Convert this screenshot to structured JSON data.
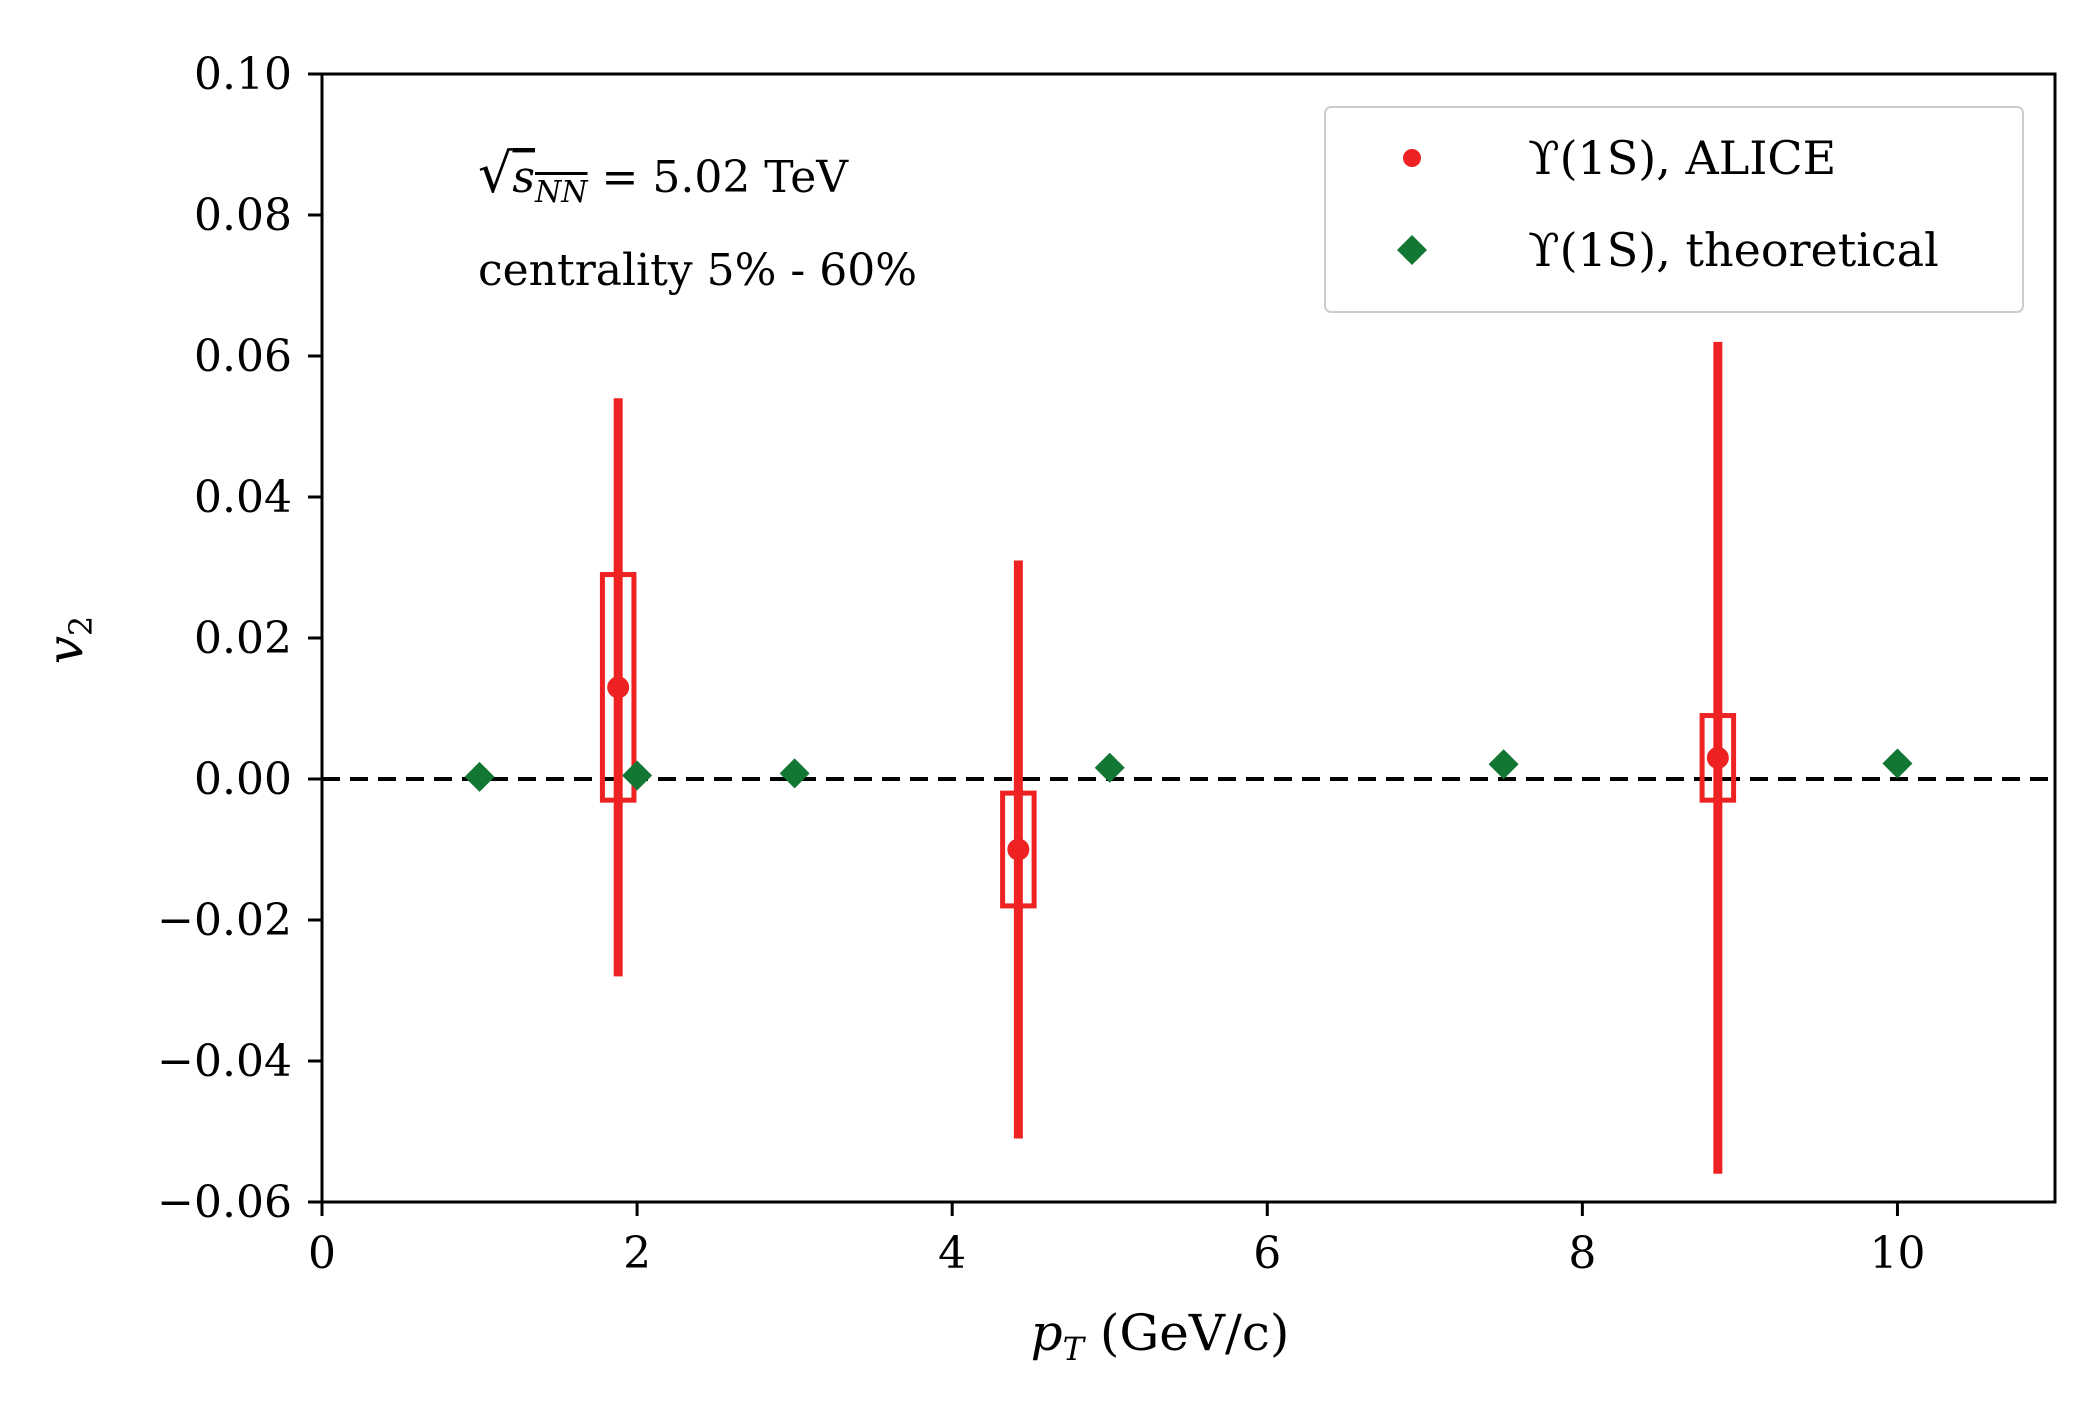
{
  "chart_data": {
    "type": "scatter",
    "title": "",
    "xlabel": "p_T (GeV/c)",
    "xlabel_main": "p",
    "xlabel_sub": "T",
    "xlabel_rest": " (GeV/c)",
    "ylabel": "v2",
    "ylabel_main": "v",
    "ylabel_sub": "2",
    "xlim": [
      0,
      11
    ],
    "ylim": [
      -0.06,
      0.1
    ],
    "xticks": [
      0,
      2,
      4,
      6,
      8,
      10
    ],
    "xtick_labels": [
      "0",
      "2",
      "4",
      "6",
      "8",
      "10"
    ],
    "yticks": [
      -0.06,
      -0.04,
      -0.02,
      0.0,
      0.02,
      0.04,
      0.06,
      0.08,
      0.1
    ],
    "ytick_labels": [
      "−0.06",
      "−0.04",
      "−0.02",
      "0.00",
      "0.02",
      "0.04",
      "0.06",
      "0.08",
      "0.10"
    ],
    "reference_line": {
      "y": 0.0,
      "style": "dashed",
      "color": "#000000"
    },
    "annotations": {
      "energy_prefix": "√",
      "energy_var": "s",
      "energy_sub": "NN",
      "energy_rest": " = 5.02 TeV",
      "centrality": "centrality 5% - 60%"
    },
    "legend_position": "top-right",
    "series": [
      {
        "name": "ϒ(1S), ALICE",
        "marker": "circle",
        "color": "#ee2222",
        "points": [
          {
            "x": 1.88,
            "y": 0.013,
            "stat_lo": -0.028,
            "stat_hi": 0.054,
            "sys_lo": -0.003,
            "sys_hi": 0.029,
            "sys_xw": 0.2
          },
          {
            "x": 4.42,
            "y": -0.01,
            "stat_lo": -0.051,
            "stat_hi": 0.031,
            "sys_lo": -0.018,
            "sys_hi": -0.002,
            "sys_xw": 0.2
          },
          {
            "x": 8.86,
            "y": 0.003,
            "stat_lo": -0.056,
            "stat_hi": 0.062,
            "sys_lo": -0.003,
            "sys_hi": 0.009,
            "sys_xw": 0.2
          }
        ]
      },
      {
        "name": "ϒ(1S), theoretical",
        "marker": "diamond",
        "color": "#117733",
        "points": [
          {
            "x": 1.0,
            "y": 0.0003
          },
          {
            "x": 2.0,
            "y": 0.0005
          },
          {
            "x": 3.0,
            "y": 0.0008
          },
          {
            "x": 5.0,
            "y": 0.0016
          },
          {
            "x": 7.5,
            "y": 0.0021
          },
          {
            "x": 10.0,
            "y": 0.0022
          }
        ]
      }
    ]
  }
}
